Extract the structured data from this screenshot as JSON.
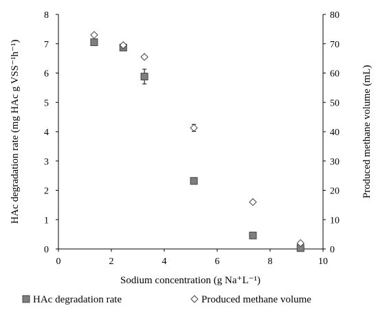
{
  "chart_data": {
    "type": "scatter",
    "xlabel": "Sodium concentration (g Na⁺L⁻¹)",
    "ylabel_left": "HAc degradation rate (mg HAc g VSS⁻¹h⁻¹)",
    "ylabel_right": "Produced methane volume (mL)",
    "xlim": [
      0,
      10
    ],
    "ylim_left": [
      0,
      8
    ],
    "ylim_right": [
      0,
      80
    ],
    "x_ticks": [
      0,
      2,
      4,
      6,
      8,
      10
    ],
    "y_left_ticks": [
      0,
      1,
      2,
      3,
      4,
      5,
      6,
      7,
      8
    ],
    "y_right_ticks": [
      0,
      10,
      20,
      30,
      40,
      50,
      60,
      70,
      80
    ],
    "grid": false,
    "legend_position": "bottom",
    "series": [
      {
        "name": "HAc degradation rate",
        "axis": "left",
        "marker": "square",
        "color": "#7f7f7f",
        "x": [
          1.35,
          2.45,
          3.25,
          5.12,
          7.35,
          9.15
        ],
        "y": [
          7.05,
          6.87,
          5.88,
          2.32,
          0.46,
          0.03
        ],
        "error": [
          0.0,
          0.0,
          0.25,
          0.0,
          0.0,
          0.0
        ]
      },
      {
        "name": "Produced methane volume",
        "axis": "right",
        "marker": "diamond",
        "color": "#ffffff",
        "x": [
          1.35,
          2.45,
          3.25,
          5.12,
          7.35,
          9.15
        ],
        "y": [
          73.0,
          69.5,
          65.5,
          41.3,
          16.0,
          2.0
        ],
        "error": [
          0.0,
          0.0,
          0.0,
          1.2,
          0.0,
          0.0
        ]
      }
    ]
  }
}
